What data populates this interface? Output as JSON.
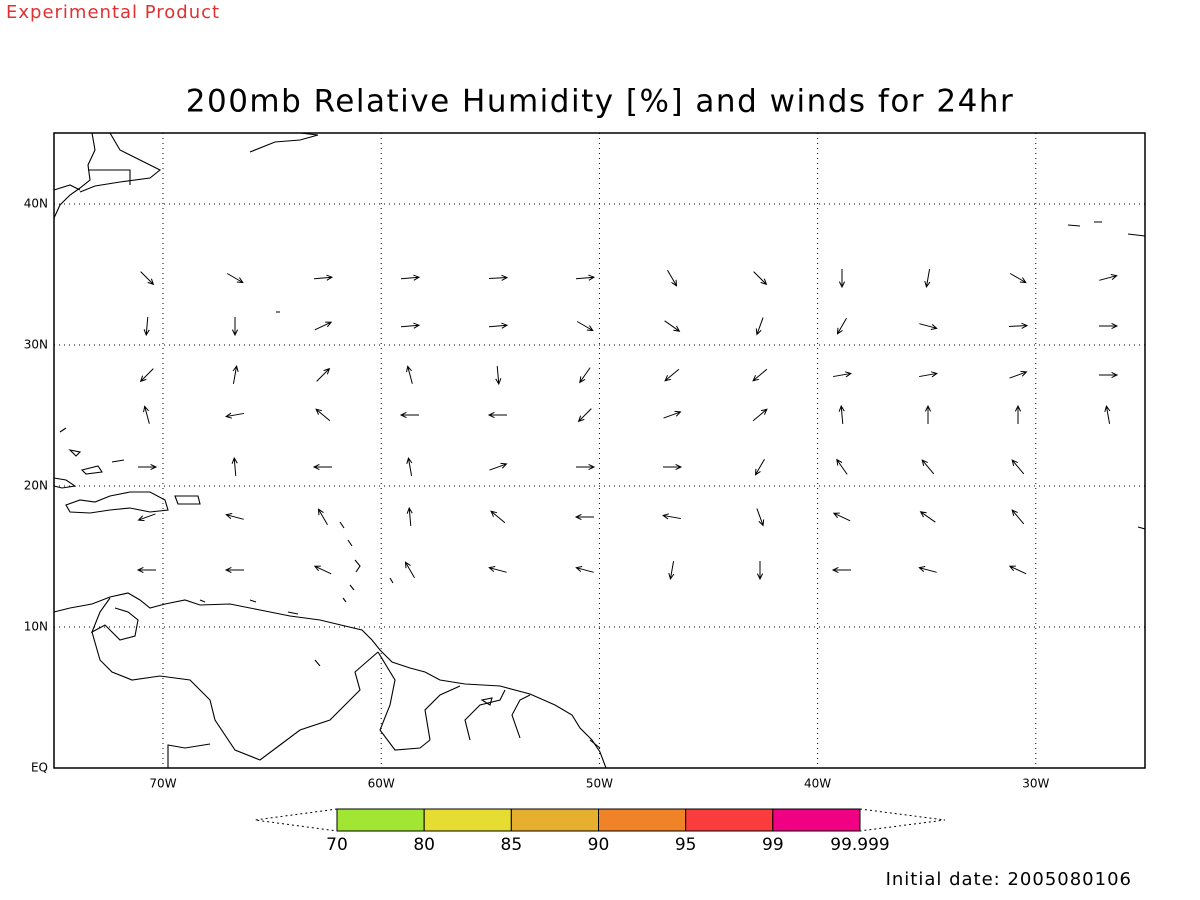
{
  "header": {
    "product_note": "Experimental Product",
    "title": "200mb Relative Humidity [%] and winds for 24hr"
  },
  "map": {
    "lat_labels": [
      "EQ",
      "10N",
      "20N",
      "30N",
      "40N"
    ],
    "lon_labels": [
      "70W",
      "60W",
      "50W",
      "40W",
      "30W"
    ]
  },
  "colorbar": {
    "labels": [
      "70",
      "80",
      "85",
      "90",
      "95",
      "99",
      "99.999"
    ],
    "colors": [
      "#a0e632",
      "#e6dc32",
      "#e6af2d",
      "#f08228",
      "#fa3c3c",
      "#f00082"
    ]
  },
  "footer": {
    "initial_date": "Initial date: 2005080106"
  }
}
